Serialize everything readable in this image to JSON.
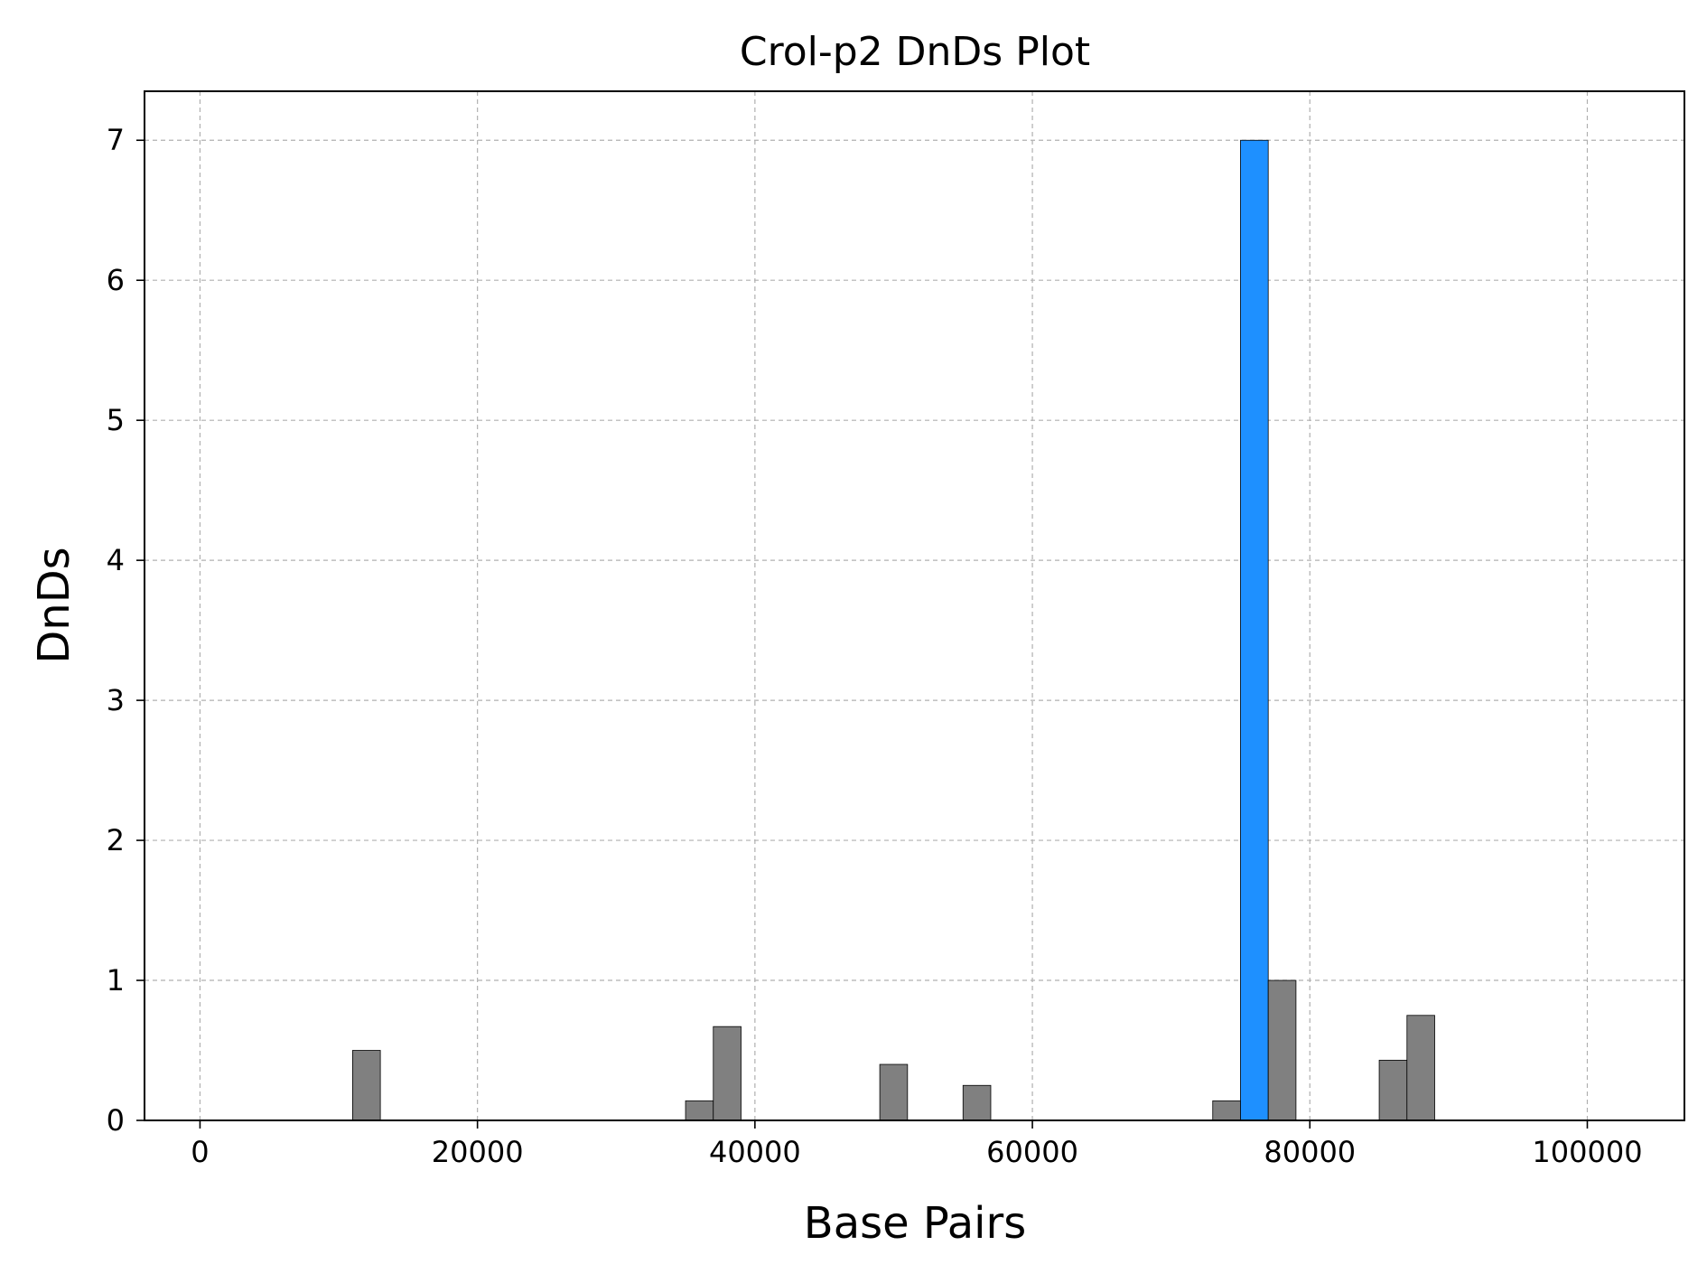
{
  "chart_data": {
    "type": "bar",
    "title": "Crol-p2 DnDs Plot",
    "xlabel": "Base Pairs",
    "ylabel": "DnDs",
    "xlim": [
      -4000,
      107000
    ],
    "ylim": [
      0,
      7.35
    ],
    "x_ticks": [
      0,
      20000,
      40000,
      60000,
      80000,
      100000
    ],
    "y_ticks": [
      0,
      1,
      2,
      3,
      4,
      5,
      6,
      7
    ],
    "grid": true,
    "bin_width": 2000,
    "colors": {
      "default": "#808080",
      "highlight": "#1e90ff"
    },
    "bars": [
      {
        "x_start": 11000,
        "x_end": 13000,
        "value": 0.5,
        "color": "#808080"
      },
      {
        "x_start": 35000,
        "x_end": 37000,
        "value": 0.14,
        "color": "#808080"
      },
      {
        "x_start": 37000,
        "x_end": 39000,
        "value": 0.67,
        "color": "#808080"
      },
      {
        "x_start": 49000,
        "x_end": 51000,
        "value": 0.4,
        "color": "#808080"
      },
      {
        "x_start": 55000,
        "x_end": 57000,
        "value": 0.25,
        "color": "#808080"
      },
      {
        "x_start": 73000,
        "x_end": 75000,
        "value": 0.14,
        "color": "#808080"
      },
      {
        "x_start": 75000,
        "x_end": 77000,
        "value": 7.0,
        "color": "#1e90ff"
      },
      {
        "x_start": 77000,
        "x_end": 79000,
        "value": 1.0,
        "color": "#808080"
      },
      {
        "x_start": 85000,
        "x_end": 87000,
        "value": 0.43,
        "color": "#808080"
      },
      {
        "x_start": 87000,
        "x_end": 89000,
        "value": 0.75,
        "color": "#808080"
      }
    ]
  }
}
